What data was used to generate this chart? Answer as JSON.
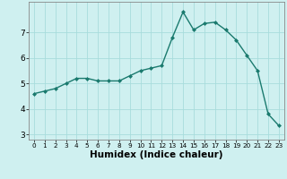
{
  "x": [
    0,
    1,
    2,
    3,
    4,
    5,
    6,
    7,
    8,
    9,
    10,
    11,
    12,
    13,
    14,
    15,
    16,
    17,
    18,
    19,
    20,
    21,
    22,
    23
  ],
  "y": [
    4.6,
    4.7,
    4.8,
    5.0,
    5.2,
    5.2,
    5.1,
    5.1,
    5.1,
    5.3,
    5.5,
    5.6,
    5.7,
    6.8,
    7.8,
    7.1,
    7.35,
    7.4,
    7.1,
    6.7,
    6.1,
    5.5,
    3.8,
    3.35
  ],
  "xlabel": "Humidex (Indice chaleur)",
  "ylabel": "",
  "xlim": [
    -0.5,
    23.5
  ],
  "ylim": [
    2.8,
    8.2
  ],
  "yticks": [
    3,
    4,
    5,
    6,
    7
  ],
  "xticks": [
    0,
    1,
    2,
    3,
    4,
    5,
    6,
    7,
    8,
    9,
    10,
    11,
    12,
    13,
    14,
    15,
    16,
    17,
    18,
    19,
    20,
    21,
    22,
    23
  ],
  "line_color": "#1a7a6e",
  "marker": "D",
  "marker_size": 2.0,
  "bg_color": "#cff0f0",
  "grid_color": "#a8dcdc",
  "xlabel_fontsize": 7.5,
  "tick_fontsize": 6.5,
  "xtick_fontsize": 5.2
}
